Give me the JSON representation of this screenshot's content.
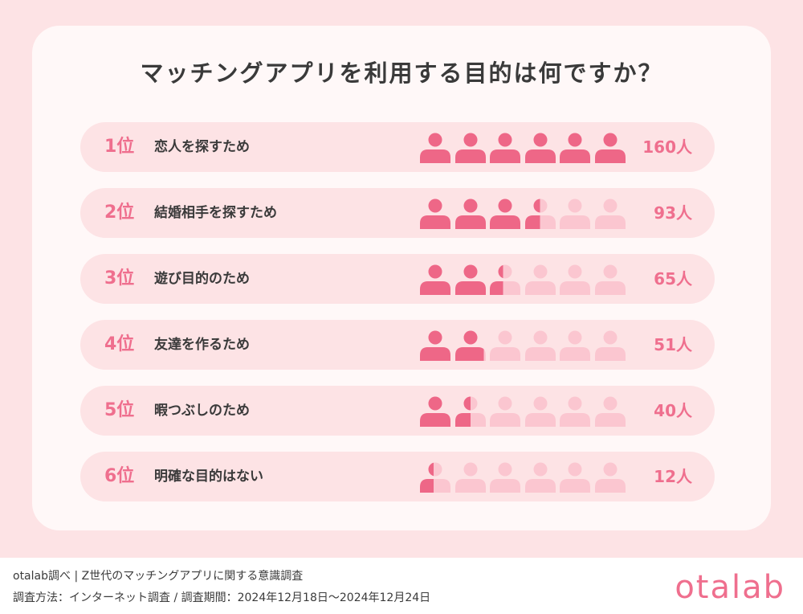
{
  "title": "マッチングアプリを利用する目的は何ですか？",
  "chart_data": {
    "type": "bar",
    "title": "マッチングアプリを利用する目的は何ですか？",
    "icons_per_row": 6,
    "max_value": 160,
    "colors": {
      "filled": "#ee6787",
      "empty": "#fbc6d0"
    },
    "rows": [
      {
        "rank": "1位",
        "label": "恋人を探すため",
        "value": 160,
        "count_label": "160人"
      },
      {
        "rank": "2位",
        "label": "結婚相手を探すため",
        "value": 93,
        "count_label": "93人"
      },
      {
        "rank": "3位",
        "label": "遊び目的のため",
        "value": 65,
        "count_label": "65人"
      },
      {
        "rank": "4位",
        "label": "友達を作るため",
        "value": 51,
        "count_label": "51人"
      },
      {
        "rank": "5位",
        "label": "暇つぶしのため",
        "value": 40,
        "count_label": "40人"
      },
      {
        "rank": "6位",
        "label": "明確な目的はない",
        "value": 12,
        "count_label": "12人"
      }
    ]
  },
  "footer": {
    "line1": "otalab調べ | Z世代のマッチングアプリに関する意識調査",
    "line2": "調査方法：インターネット調査 / 調査期間：2024年12月18日〜2024年12月24日"
  },
  "logo": "otalab"
}
